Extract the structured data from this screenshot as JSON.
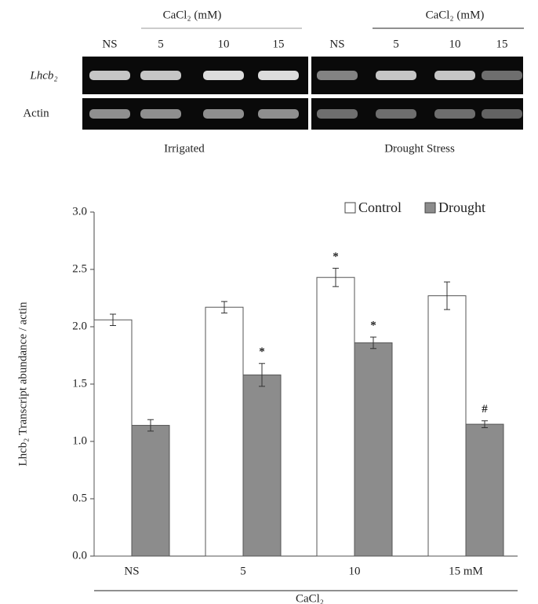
{
  "gel": {
    "group_label_left": "CaCl₂ (mM)",
    "group_label_right": "CaCl₂ (mM)",
    "lanes_left": [
      "NS",
      "5",
      "10",
      "15"
    ],
    "lanes_right": [
      "NS",
      "5",
      "10",
      "15"
    ],
    "rows": [
      "Lhcb₂",
      "Actin"
    ],
    "panel_left": "Irrigated",
    "panel_right": "Drought Stress"
  },
  "chart_data": {
    "type": "bar",
    "y_label": "Lhcb₂ Transcript abundance / actin",
    "x_label": "CaCl₂",
    "categories": [
      "NS",
      "5",
      "10",
      "15 mM"
    ],
    "series": [
      {
        "name": "Control",
        "color": "#ffffff",
        "values": [
          2.06,
          2.17,
          2.43,
          2.27
        ],
        "errors": [
          0.05,
          0.05,
          0.08,
          0.12
        ],
        "annotations": [
          null,
          null,
          "*",
          null
        ]
      },
      {
        "name": "Drought",
        "color": "#8c8c8c",
        "values": [
          1.14,
          1.58,
          1.86,
          1.15
        ],
        "errors": [
          0.05,
          0.1,
          0.05,
          0.03
        ],
        "annotations": [
          null,
          "*",
          "*",
          "#"
        ]
      }
    ],
    "ylim": [
      0,
      3.0
    ],
    "yticks": [
      {
        "value": 0,
        "label": "0.0"
      },
      {
        "value": 0.5,
        "label": "0.5"
      },
      {
        "value": 1.0,
        "label": "1.0"
      },
      {
        "value": 1.5,
        "label": "1.5"
      },
      {
        "value": 2.0,
        "label": "2.0"
      },
      {
        "value": 2.5,
        "label": "2.5"
      },
      {
        "value": 3.0,
        "label": "3.0"
      }
    ],
    "legend": "top-right"
  }
}
